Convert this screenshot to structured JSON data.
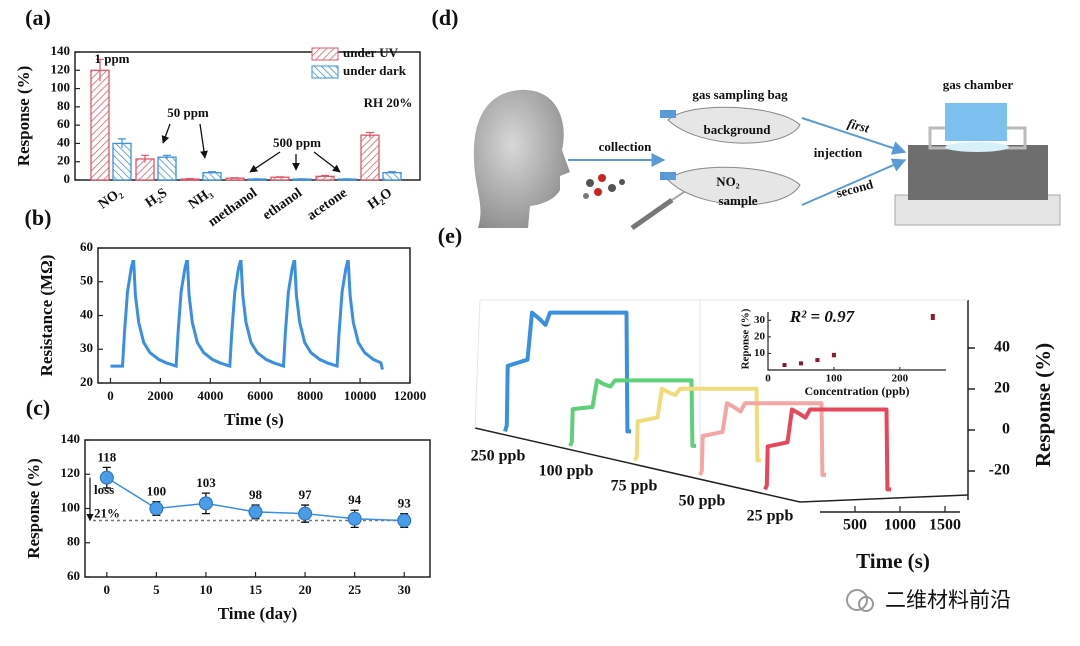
{
  "chart_data": [
    {
      "panel_label": "(a)",
      "type": "bar",
      "ylabel": "Response (%)",
      "categories": [
        "NO₂",
        "H₂S",
        "NH₃",
        "methanol",
        "ethanol",
        "acetone",
        "H₂O"
      ],
      "series": [
        {
          "name": "under UV",
          "color": "#e0566a",
          "values": [
            120,
            23,
            1,
            2,
            3,
            4,
            49
          ],
          "errors": [
            12,
            4,
            0.5,
            0.5,
            0.5,
            1,
            3
          ]
        },
        {
          "name": "under dark",
          "color": "#3a8fe0",
          "values": [
            40,
            25,
            8,
            1,
            1,
            1,
            8
          ],
          "errors": [
            5,
            2,
            1,
            0.3,
            0.3,
            0.3,
            1
          ]
        }
      ],
      "ylim": [
        0,
        140
      ],
      "yticks": [
        0,
        20,
        40,
        60,
        80,
        100,
        120,
        140
      ],
      "annotations": [
        "1 ppm",
        "50 ppm",
        "500 ppm",
        "RH 20%"
      ]
    },
    {
      "panel_label": "(b)",
      "type": "line",
      "xlabel": "Time (s)",
      "ylabel": "Resistance (MΩ)",
      "color": "#3a8fe0",
      "x": [
        0,
        480,
        560,
        680,
        830,
        900,
        930,
        1000,
        1130,
        1330,
        1580,
        1930,
        2230,
        2630,
        2710,
        2830,
        2980,
        3050,
        3080,
        3150,
        3280,
        3480,
        3730,
        4080,
        4380,
        4780,
        4860,
        4980,
        5130,
        5200,
        5230,
        5300,
        5430,
        5630,
        5880,
        6230,
        6530,
        6930,
        7010,
        7130,
        7280,
        7350,
        7380,
        7450,
        7580,
        7780,
        8030,
        8380,
        8680,
        9080,
        9160,
        9280,
        9430,
        9500,
        9530,
        9600,
        9730,
        9930,
        10180,
        10530,
        10830,
        10900
      ],
      "values": [
        25,
        25,
        35,
        47,
        54,
        56,
        56,
        46,
        38,
        32,
        29,
        27,
        26,
        25,
        35,
        47,
        54,
        56,
        56,
        46,
        38,
        32,
        29,
        27,
        26,
        25,
        35,
        47,
        54,
        56,
        56,
        46,
        38,
        32,
        29,
        27,
        26,
        25,
        35,
        47,
        54,
        56,
        56,
        46,
        38,
        32,
        29,
        27,
        26,
        25,
        35,
        47,
        54,
        56,
        56,
        46,
        38,
        32,
        29,
        27,
        26,
        24
      ],
      "xlim": [
        -500,
        12000
      ],
      "xticks": [
        0,
        2000,
        4000,
        6000,
        8000,
        10000,
        12000
      ],
      "ylim": [
        20,
        60
      ],
      "yticks": [
        20,
        30,
        40,
        50,
        60
      ]
    },
    {
      "panel_label": "(c)",
      "type": "line",
      "xlabel": "Time (day)",
      "ylabel": "Response (%)",
      "color": "#3a8fe0",
      "x": [
        0,
        5,
        10,
        15,
        20,
        25,
        30
      ],
      "values": [
        118,
        100,
        103,
        98,
        97,
        94,
        93
      ],
      "errors": [
        6,
        4,
        6,
        4,
        5,
        5,
        4
      ],
      "xlim": [
        -2.2,
        32.6
      ],
      "xticks": [
        0,
        5,
        10,
        15,
        20,
        25,
        30
      ],
      "ylim": [
        60,
        140
      ],
      "yticks": [
        60,
        80,
        100,
        120,
        140
      ],
      "annotations": [
        "loss",
        "21%"
      ]
    },
    {
      "panel_label": "(e)",
      "type": "line3d",
      "xlabel": "Time (s)",
      "ylabel": "Response (%)",
      "x": [
        0,
        20,
        30,
        250,
        300,
        380,
        450,
        500,
        1350,
        1360,
        1400
      ],
      "series": [
        {
          "name": "250 ppb",
          "color": "#3a8fe0",
          "values": [
            -29,
            -26,
            3,
            6,
            29,
            26,
            23,
            29,
            29,
            -29,
            -29
          ]
        },
        {
          "name": "100 ppb",
          "color": "#5fd07a",
          "values": [
            -29,
            -27,
            -11,
            -10,
            3,
            1,
            0,
            3,
            3,
            -29,
            -29
          ]
        },
        {
          "name": "75 ppb",
          "color": "#f0dc7a",
          "values": [
            -29,
            -27,
            -10,
            -8,
            6,
            4,
            3,
            6,
            6,
            -29,
            -29
          ]
        },
        {
          "name": "50 ppb",
          "color": "#f4a6a6",
          "values": [
            -29,
            -27,
            -10,
            -8,
            6,
            4,
            2,
            6,
            6,
            -29,
            -29
          ]
        },
        {
          "name": "25 ppb",
          "color": "#e8465a",
          "values": [
            -29,
            -27,
            -8,
            -6,
            10,
            8,
            6,
            10,
            10,
            -29,
            -29
          ]
        }
      ],
      "xticks": [
        500,
        1000,
        1500
      ],
      "ylim": [
        -35,
        55
      ],
      "yticks": [
        -20,
        0,
        20,
        40
      ]
    },
    {
      "type": "scatter",
      "xlabel": "Concentration (ppb)",
      "ylabel": "Reponse (%)",
      "annotation": "R² = 0.97",
      "color": "#8b1a2a",
      "x": [
        25,
        50,
        75,
        100,
        250
      ],
      "values": [
        3,
        4,
        6,
        9,
        32
      ],
      "errors": [
        0.5,
        0.5,
        0.6,
        1,
        1.5
      ],
      "xlim": [
        0,
        270
      ],
      "xticks": [
        0,
        100,
        200
      ],
      "ylim": [
        0,
        35
      ],
      "yticks": [
        10,
        20,
        30
      ]
    }
  ],
  "diagram": {
    "panel_label": "(d)",
    "labels": [
      "gas sampling bag",
      "background",
      "collection",
      "first",
      "injection",
      "second",
      "NO₂",
      "sample",
      "gas chamber"
    ]
  },
  "watermark": "二维材料前沿"
}
